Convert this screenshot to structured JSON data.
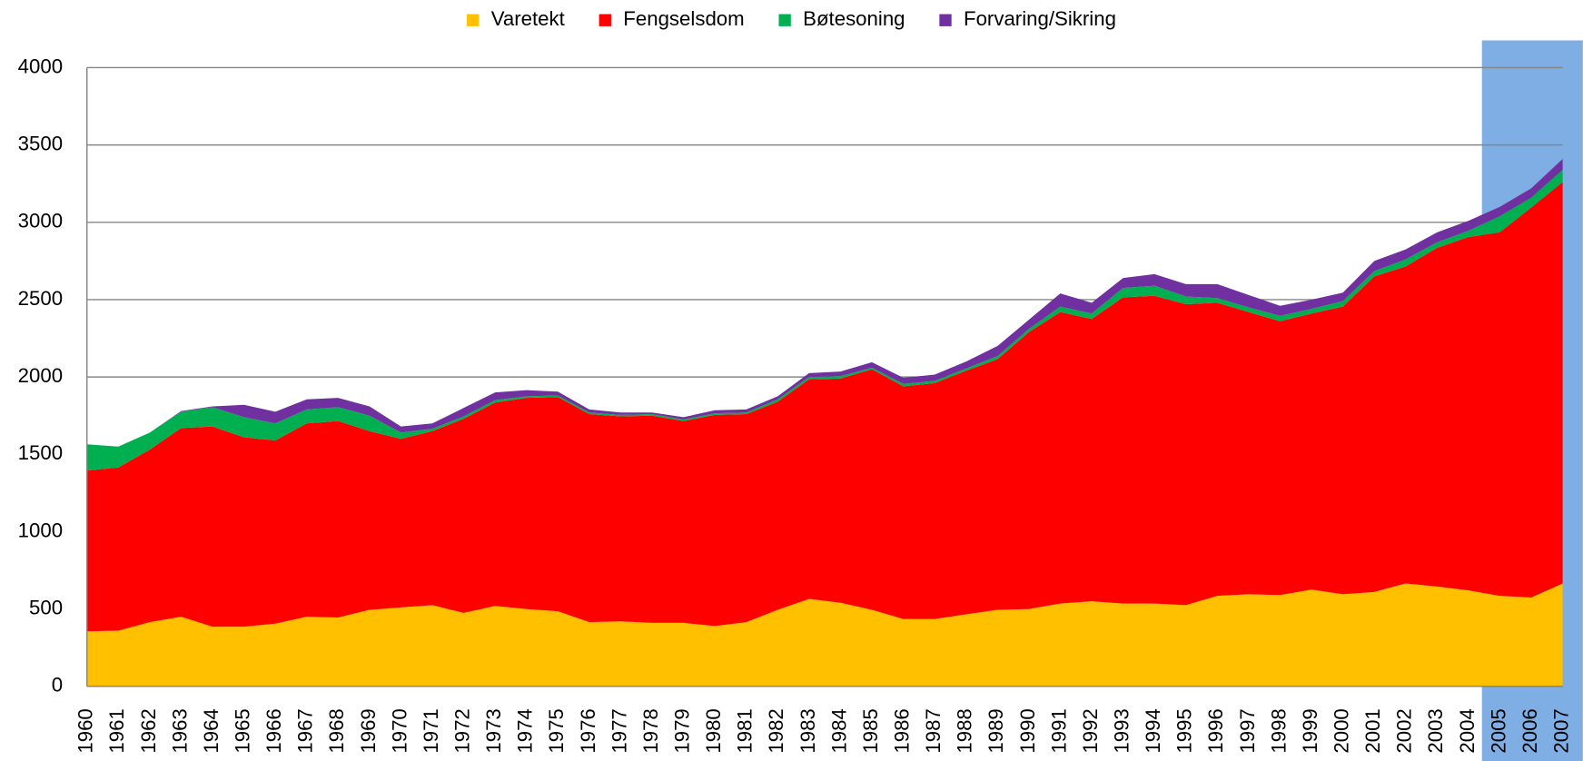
{
  "chart_data": {
    "type": "stacked-area",
    "categories": [
      "1960",
      "1961",
      "1962",
      "1963",
      "1964",
      "1965",
      "1966",
      "1967",
      "1968",
      "1969",
      "1970",
      "1971",
      "1972",
      "1973",
      "1974",
      "1975",
      "1976",
      "1977",
      "1978",
      "1979",
      "1980",
      "1981",
      "1982",
      "1983",
      "1984",
      "1985",
      "1986",
      "1987",
      "1988",
      "1989",
      "1990",
      "1991",
      "1992",
      "1993",
      "1994",
      "1995",
      "1996",
      "1997",
      "1998",
      "1999",
      "2000",
      "2001",
      "2002",
      "2003",
      "2004",
      "2005",
      "2006",
      "2007"
    ],
    "series": [
      {
        "name": "Varetekt",
        "color": "#ffc000",
        "values": [
          355,
          360,
          415,
          450,
          385,
          385,
          405,
          450,
          445,
          495,
          510,
          525,
          475,
          520,
          500,
          485,
          415,
          420,
          410,
          410,
          390,
          415,
          495,
          565,
          540,
          495,
          435,
          435,
          465,
          495,
          500,
          535,
          550,
          535,
          535,
          525,
          585,
          595,
          590,
          625,
          595,
          610,
          665,
          645,
          620,
          585,
          575,
          665
        ]
      },
      {
        "name": "Fengselsdom",
        "color": "#ff0000",
        "values": [
          1040,
          1055,
          1115,
          1220,
          1295,
          1225,
          1185,
          1250,
          1270,
          1155,
          1090,
          1125,
          1255,
          1315,
          1365,
          1385,
          1345,
          1325,
          1340,
          1305,
          1365,
          1345,
          1345,
          1420,
          1450,
          1555,
          1505,
          1525,
          1575,
          1620,
          1790,
          1885,
          1825,
          1980,
          1990,
          1945,
          1895,
          1825,
          1770,
          1785,
          1860,
          2040,
          2050,
          2190,
          2285,
          2350,
          2520,
          2595
        ]
      },
      {
        "name": "Bøtesoning",
        "color": "#00b050",
        "values": [
          170,
          135,
          110,
          105,
          125,
          130,
          110,
          90,
          90,
          100,
          40,
          15,
          15,
          15,
          10,
          10,
          10,
          10,
          10,
          10,
          10,
          10,
          15,
          15,
          15,
          10,
          15,
          15,
          15,
          20,
          20,
          35,
          35,
          60,
          65,
          50,
          30,
          30,
          35,
          30,
          35,
          35,
          45,
          35,
          40,
          105,
          65,
          80
        ]
      },
      {
        "name": "Forvaring/Sikring",
        "color": "#7030a0",
        "values": [
          0,
          0,
          0,
          5,
          5,
          80,
          75,
          65,
          60,
          60,
          40,
          35,
          55,
          50,
          40,
          25,
          20,
          15,
          10,
          15,
          20,
          20,
          20,
          25,
          30,
          35,
          40,
          40,
          45,
          65,
          60,
          85,
          70,
          65,
          75,
          80,
          90,
          80,
          65,
          60,
          55,
          65,
          65,
          65,
          65,
          60,
          60,
          70
        ]
      }
    ],
    "ylim": [
      0,
      4000
    ],
    "yticks": [
      0,
      500,
      1000,
      1500,
      2000,
      2500,
      3000,
      3500,
      4000
    ],
    "grid": true,
    "legend": "top"
  }
}
